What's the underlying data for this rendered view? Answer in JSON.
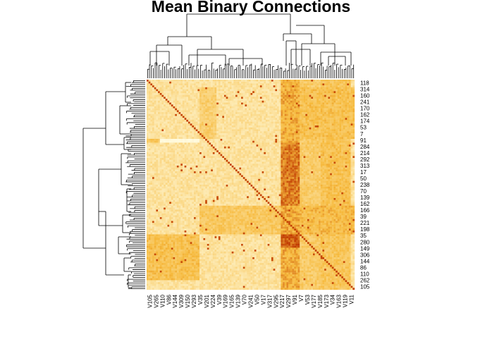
{
  "chart_data": {
    "type": "heatmap",
    "title": "Mean Binary Connections",
    "xlabel": "",
    "ylabel": "",
    "dendrograms": {
      "rows": true,
      "columns": true
    },
    "colors": {
      "low": "#fde9b0",
      "mid": "#f6b93b",
      "high": "#c13b00",
      "bright": "#fffbe0"
    },
    "column_labels": [
      "V105",
      "V265",
      "V110",
      "V86",
      "V144",
      "V309",
      "V150",
      "V293",
      "V35",
      "V201",
      "V224",
      "V39",
      "V169",
      "V165",
      "V139",
      "V70",
      "V241",
      "V50",
      "V17",
      "V317",
      "V295",
      "V217",
      "V297",
      "V91",
      "V7",
      "V53",
      "V177",
      "V185",
      "V173",
      "V34",
      "V163",
      "V119",
      "V11"
    ],
    "row_labels": [
      "118",
      "314",
      "160",
      "241",
      "170",
      "162",
      "174",
      "53",
      "7",
      "91",
      "284",
      "214",
      "292",
      "313",
      "17",
      "50",
      "238",
      "70",
      "139",
      "162",
      "166",
      "39",
      "221",
      "198",
      "35",
      "280",
      "149",
      "306",
      "144",
      "86",
      "110",
      "262",
      "105"
    ]
  }
}
